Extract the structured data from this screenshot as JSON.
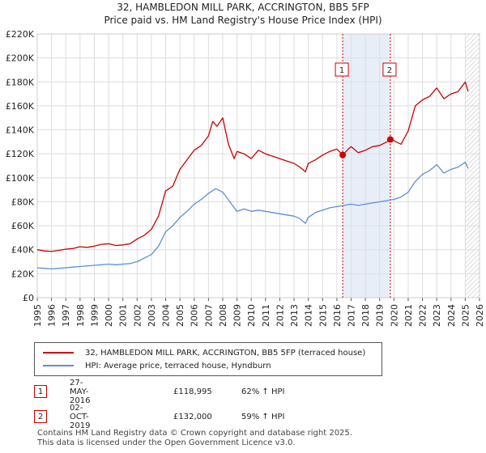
{
  "title": "32, HAMBLEDON MILL PARK, ACCRINGTON, BB5 5FP",
  "subtitle": "Price paid vs. HM Land Registry's House Price Index (HPI)",
  "chart_data": {
    "type": "line",
    "title": "32, HAMBLEDON MILL PARK, ACCRINGTON, BB5 5FP",
    "subtitle": "Price paid vs. HM Land Registry's House Price Index (HPI)",
    "xlabel": "",
    "ylabel": "",
    "xlim": [
      1995,
      2026
    ],
    "ylim": [
      0,
      220000
    ],
    "grid": true,
    "yticks": [
      {
        "v": 0,
        "label": "£0"
      },
      {
        "v": 20000,
        "label": "£20K"
      },
      {
        "v": 40000,
        "label": "£40K"
      },
      {
        "v": 60000,
        "label": "£60K"
      },
      {
        "v": 80000,
        "label": "£80K"
      },
      {
        "v": 100000,
        "label": "£100K"
      },
      {
        "v": 120000,
        "label": "£120K"
      },
      {
        "v": 140000,
        "label": "£140K"
      },
      {
        "v": 160000,
        "label": "£160K"
      },
      {
        "v": 180000,
        "label": "£180K"
      },
      {
        "v": 200000,
        "label": "£200K"
      },
      {
        "v": 220000,
        "label": "£220K"
      }
    ],
    "xticks": [
      "1995",
      "1996",
      "1997",
      "1998",
      "1999",
      "2000",
      "2001",
      "2002",
      "2003",
      "2004",
      "2005",
      "2006",
      "2007",
      "2008",
      "2009",
      "2010",
      "2011",
      "2012",
      "2013",
      "2014",
      "2015",
      "2016",
      "2017",
      "2018",
      "2019",
      "2020",
      "2021",
      "2022",
      "2023",
      "2024",
      "2025",
      "2026"
    ],
    "series": [
      {
        "name": "32, HAMBLEDON MILL PARK, ACCRINGTON, BB5 5FP (terraced house)",
        "color": "#cc0000",
        "x": [
          1995,
          1995.5,
          1996,
          1996.5,
          1997,
          1997.5,
          1998,
          1998.5,
          1999,
          1999.5,
          2000,
          2000.5,
          2001,
          2001.5,
          2002,
          2002.5,
          2003,
          2003.5,
          2004,
          2004.5,
          2005,
          2005.5,
          2006,
          2006.5,
          2007,
          2007.3,
          2007.6,
          2008,
          2008.4,
          2008.8,
          2009,
          2009.5,
          2010,
          2010.5,
          2011,
          2011.5,
          2012,
          2012.5,
          2013,
          2013.4,
          2013.8,
          2014,
          2014.5,
          2015,
          2015.5,
          2016,
          2016.41,
          2016.8,
          2017,
          2017.5,
          2018,
          2018.5,
          2019,
          2019.5,
          2019.75,
          2020,
          2020.5,
          2021,
          2021.5,
          2022,
          2022.5,
          2023,
          2023.5,
          2024,
          2024.5,
          2025,
          2025.2
        ],
        "values": [
          40000,
          39000,
          38500,
          39500,
          40500,
          41000,
          42500,
          42000,
          43000,
          44500,
          45000,
          43500,
          44000,
          45000,
          49000,
          52000,
          57000,
          68000,
          89000,
          93000,
          107000,
          115000,
          123000,
          127000,
          135000,
          147000,
          143000,
          150000,
          128000,
          116000,
          122000,
          120000,
          116000,
          123000,
          120000,
          118000,
          116000,
          114000,
          112000,
          109000,
          105000,
          112000,
          115000,
          119000,
          122000,
          124000,
          118995,
          124000,
          126000,
          121000,
          123000,
          126000,
          127000,
          130000,
          132000,
          131000,
          128000,
          139000,
          160000,
          165000,
          168000,
          175000,
          166000,
          170000,
          172000,
          180000,
          172000
        ]
      },
      {
        "name": "HPI: Average price, terraced house, Hyndburn",
        "color": "#5b8fd6",
        "x": [
          1995,
          1995.5,
          1996,
          1996.5,
          1997,
          1997.5,
          1998,
          1998.5,
          1999,
          1999.5,
          2000,
          2000.5,
          2001,
          2001.5,
          2002,
          2002.5,
          2003,
          2003.5,
          2004,
          2004.5,
          2005,
          2005.5,
          2006,
          2006.5,
          2007,
          2007.5,
          2008,
          2008.5,
          2009,
          2009.5,
          2010,
          2010.5,
          2011,
          2011.5,
          2012,
          2012.5,
          2013,
          2013.4,
          2013.8,
          2014,
          2014.5,
          2015,
          2015.5,
          2016,
          2016.5,
          2017,
          2017.5,
          2018,
          2018.5,
          2019,
          2019.5,
          2020,
          2020.5,
          2021,
          2021.5,
          2022,
          2022.5,
          2023,
          2023.5,
          2024,
          2024.5,
          2025,
          2025.2
        ],
        "values": [
          25000,
          24500,
          24000,
          24500,
          25000,
          25500,
          26000,
          26500,
          27000,
          27500,
          28000,
          27500,
          28000,
          28500,
          30000,
          33000,
          36000,
          43000,
          55000,
          60000,
          67000,
          72000,
          78000,
          82000,
          87000,
          91000,
          88000,
          80000,
          72000,
          74000,
          72000,
          73000,
          72000,
          71000,
          70000,
          69000,
          68000,
          66000,
          62000,
          67000,
          71000,
          73000,
          75000,
          76000,
          77000,
          78000,
          77000,
          78000,
          79000,
          80000,
          81000,
          82000,
          84000,
          88000,
          97000,
          103000,
          106000,
          111000,
          104000,
          107000,
          109000,
          113000,
          108000
        ]
      }
    ],
    "markers": [
      {
        "label": "1",
        "x": 2016.41,
        "y": 118995
      },
      {
        "label": "2",
        "x": 2019.75,
        "y": 132000
      }
    ],
    "hatched_from": 2025.0,
    "legend_position": "bottom"
  },
  "legend": {
    "items": [
      {
        "label": "32, HAMBLEDON MILL PARK, ACCRINGTON, BB5 5FP (terraced house)",
        "color": "#cc0000"
      },
      {
        "label": "HPI: Average price, terraced house, Hyndburn",
        "color": "#5b8fd6"
      }
    ]
  },
  "transactions": [
    {
      "num": "1",
      "date": "27-MAY-2016",
      "price": "£118,995",
      "hpi": "62% ↑ HPI"
    },
    {
      "num": "2",
      "date": "02-OCT-2019",
      "price": "£132,000",
      "hpi": "59% ↑ HPI"
    }
  ],
  "footer": {
    "line1": "Contains HM Land Registry data © Crown copyright and database right 2025.",
    "line2": "This data is licensed under the Open Government Licence v3.0."
  },
  "colors": {
    "property": "#cc0000",
    "hpi": "#5b8fd6",
    "highlight": "#e8eef8",
    "marker_border": "#cc0000"
  }
}
